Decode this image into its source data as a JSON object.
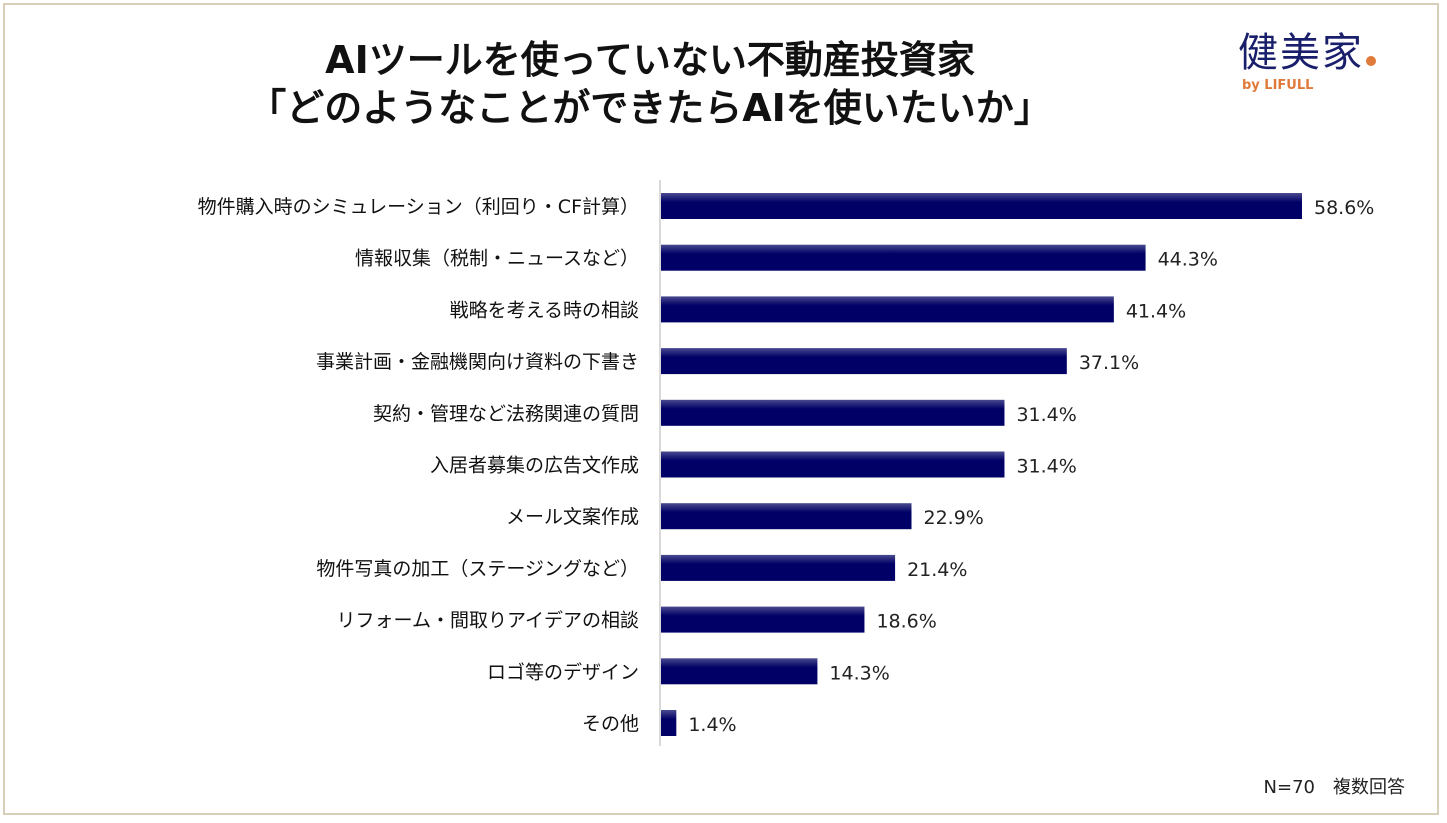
{
  "title_line1": "AIツールを使っていない不動産投資家",
  "title_line2": "「どのようなことができたらAIを使いたいか」",
  "logo": {
    "main": "健美家",
    "sub": "by LIFULL",
    "main_color": "#1a1f6b",
    "accent_color": "#e07a3a"
  },
  "note": "N=70　複数回答",
  "chart_data": {
    "type": "bar",
    "orientation": "horizontal",
    "bar_color": "#000066",
    "categories": [
      "物件購入時のシミュレーション（利回り・CF計算）",
      "情報収集（税制・ニュースなど）",
      "戦略を考える時の相談",
      "事業計画・金融機関向け資料の下書き",
      "契約・管理など法務関連の質問",
      "入居者募集の広告文作成",
      "メール文案作成",
      "物件写真の加工（ステージングなど）",
      "リフォーム・間取りアイデアの相談",
      "ロゴ等のデザイン",
      "その他"
    ],
    "values": [
      58.6,
      44.3,
      41.4,
      37.1,
      31.4,
      31.4,
      22.9,
      21.4,
      18.6,
      14.3,
      1.4
    ],
    "labels": [
      "58.6%",
      "44.3%",
      "41.4%",
      "37.1%",
      "31.4%",
      "31.4%",
      "22.9%",
      "21.4%",
      "18.6%",
      "14.3%",
      "1.4%"
    ],
    "grid": false
  }
}
